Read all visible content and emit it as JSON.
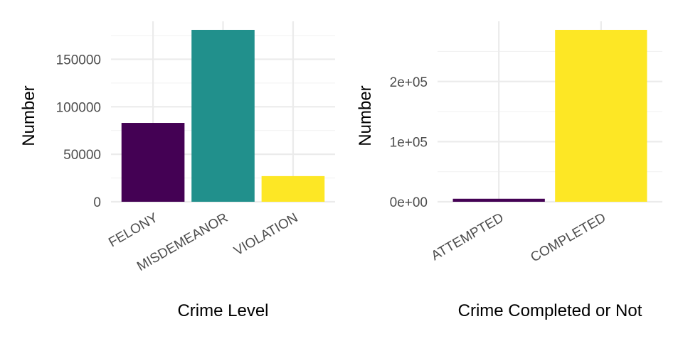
{
  "chart_data": [
    {
      "type": "bar",
      "categories": [
        "FELONY",
        "MISDEMEANOR",
        "VIOLATION"
      ],
      "values": [
        83000,
        181000,
        27000
      ],
      "colors": [
        "#440154",
        "#21908C",
        "#FDE725"
      ],
      "title": "",
      "xlabel": "Crime Level",
      "ylabel": "Number",
      "ylim": [
        0,
        181000
      ],
      "yticks": [
        0,
        50000,
        100000,
        150000
      ],
      "ytick_labels": [
        "0",
        "50000",
        "100000",
        "150000"
      ],
      "grid": true,
      "legend": "none"
    },
    {
      "type": "bar",
      "categories": [
        "ATTEMPTED",
        "COMPLETED"
      ],
      "values": [
        5000,
        286000
      ],
      "colors": [
        "#440154",
        "#FDE725"
      ],
      "title": "",
      "xlabel": "Crime Completed or Not",
      "ylabel": "Number",
      "ylim": [
        0,
        286000
      ],
      "yticks": [
        0,
        100000,
        200000
      ],
      "ytick_labels": [
        "0e+00",
        "1e+05",
        "2e+05"
      ],
      "grid": true,
      "legend": "none"
    }
  ]
}
